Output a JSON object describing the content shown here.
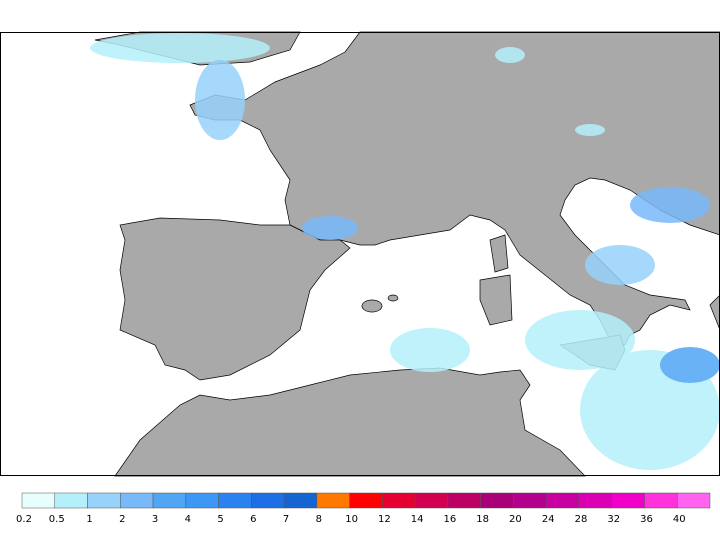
{
  "legend": {
    "levels": [
      0.2,
      0.5,
      1,
      2,
      3,
      4,
      5,
      6,
      7,
      8,
      10,
      12,
      14,
      16,
      18,
      20,
      24,
      28,
      32,
      36,
      40
    ],
    "colors": [
      "#e6fffe",
      "#b4f0fa",
      "#96d2fa",
      "#78b9fa",
      "#50a5f5",
      "#3c97f5",
      "#2883f0",
      "#1e6ee6",
      "#1464d2",
      "#ff7800",
      "#ff0000",
      "#e60032",
      "#d20050",
      "#be0064",
      "#aa0078",
      "#b4008c",
      "#c800a0",
      "#dc00b4",
      "#f000c8",
      "#ff32dc",
      "#ff64f0"
    ]
  }
}
